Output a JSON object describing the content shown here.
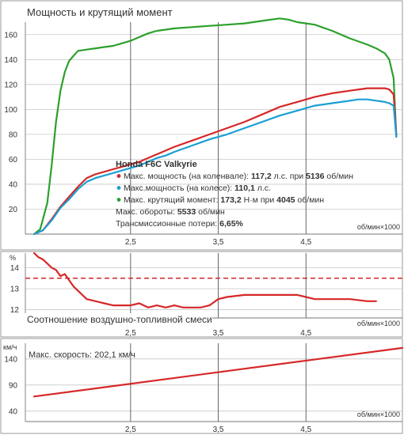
{
  "chart_data": [
    {
      "type": "line",
      "title": "Мощность и крутящий момент",
      "xlabel": "об/мин×1000",
      "xlim": [
        1.3,
        5.6
      ],
      "ylim": [
        0,
        170
      ],
      "x_ticks": [
        "2,5",
        "3,5",
        "4,5"
      ],
      "y_ticks": [
        "20",
        "40",
        "60",
        "80",
        "100",
        "120",
        "140",
        "160"
      ],
      "grid": true,
      "legend": {
        "title": "Honda F6C Valkyrie",
        "items": [
          {
            "color": "#d62728",
            "prefix": "Макс. мощность (на коленвале): ",
            "value": "117,2",
            "mid": " л.с. при ",
            "value2": "5136",
            "suffix": " об/мин"
          },
          {
            "color": "#1a9fd4",
            "prefix": "Макс.мощность (на колесе): ",
            "value": "110,1",
            "mid": " л.с.",
            "value2": "",
            "suffix": ""
          },
          {
            "color": "#2ca02c",
            "prefix": "Макс. крутящий момент: ",
            "value": "173,2",
            "mid": " Н·м при ",
            "value2": "4045",
            "suffix": " об/мин"
          }
        ],
        "extra": [
          {
            "prefix": "Макс. обороты: ",
            "value": "5533",
            "suffix": " об/мин"
          },
          {
            "prefix": "Трансмиссионные потери: ",
            "value": "6,65%",
            "suffix": ""
          }
        ]
      },
      "series": [
        {
          "key": "torque",
          "color": "#2ca02c",
          "x": [
            1.4,
            1.47,
            1.55,
            1.6,
            1.65,
            1.7,
            1.75,
            1.8,
            1.9,
            2.0,
            2.1,
            2.2,
            2.3,
            2.4,
            2.5,
            2.6,
            2.7,
            2.8,
            2.9,
            3.0,
            3.2,
            3.4,
            3.6,
            3.8,
            4.0,
            4.1,
            4.2,
            4.3,
            4.4,
            4.6,
            4.8,
            5.0,
            5.2,
            5.3,
            5.4,
            5.45,
            5.5,
            5.53
          ],
          "y": [
            0,
            4,
            25,
            55,
            90,
            115,
            130,
            139,
            147,
            148,
            149,
            150,
            151,
            153,
            155,
            158,
            161,
            163,
            164,
            165,
            166,
            167,
            168,
            169,
            171,
            172,
            173,
            172,
            170,
            168,
            163,
            157,
            152,
            149,
            145,
            140,
            125,
            78
          ]
        },
        {
          "key": "power_crank",
          "color": "#d62728",
          "x": [
            1.4,
            1.5,
            1.6,
            1.7,
            1.8,
            1.9,
            2.0,
            2.1,
            2.2,
            2.3,
            2.4,
            2.5,
            2.6,
            2.7,
            2.8,
            2.9,
            3.0,
            3.2,
            3.4,
            3.6,
            3.8,
            4.0,
            4.2,
            4.4,
            4.6,
            4.8,
            5.0,
            5.1,
            5.2,
            5.3,
            5.4,
            5.45,
            5.5,
            5.53
          ],
          "y": [
            0,
            3,
            12,
            22,
            30,
            38,
            45,
            48,
            50,
            52,
            54,
            56,
            58,
            61,
            64,
            67,
            70,
            75,
            80,
            85,
            90,
            96,
            102,
            106,
            110,
            113,
            115,
            116,
            117,
            117,
            117,
            116,
            112,
            80
          ]
        },
        {
          "key": "power_wheel",
          "color": "#1a9fd4",
          "x": [
            1.4,
            1.5,
            1.6,
            1.7,
            1.8,
            1.9,
            2.0,
            2.1,
            2.2,
            2.3,
            2.4,
            2.5,
            2.6,
            2.7,
            2.8,
            2.9,
            3.0,
            3.2,
            3.4,
            3.6,
            3.8,
            4.0,
            4.2,
            4.4,
            4.6,
            4.8,
            5.0,
            5.1,
            5.2,
            5.3,
            5.4,
            5.45,
            5.5,
            5.53
          ],
          "y": [
            0,
            3,
            11,
            21,
            28,
            36,
            42,
            45,
            47,
            49,
            51,
            53,
            55,
            58,
            61,
            63,
            66,
            71,
            76,
            80,
            85,
            90,
            95,
            99,
            103,
            105,
            107,
            108,
            108,
            107,
            106,
            105,
            103,
            78
          ]
        }
      ]
    },
    {
      "type": "line",
      "title": "Соотношение воздушно-топливной смеси",
      "ylabel": "%",
      "xlabel": "об/мин×1000",
      "xlim": [
        1.3,
        5.6
      ],
      "ylim": [
        11.6,
        14.7
      ],
      "x_ticks": [
        "2,5",
        "3,5",
        "4,5"
      ],
      "y_ticks": [
        "12",
        "13",
        "14"
      ],
      "grid": true,
      "reference_line": {
        "y": 13.5,
        "color": "#d62728",
        "style": "dashed"
      },
      "series": [
        {
          "key": "afr",
          "color": "#d62728",
          "x": [
            1.4,
            1.45,
            1.5,
            1.55,
            1.6,
            1.65,
            1.7,
            1.75,
            1.8,
            1.85,
            1.9,
            1.95,
            2.0,
            2.1,
            2.2,
            2.3,
            2.4,
            2.5,
            2.6,
            2.7,
            2.8,
            2.9,
            3.0,
            3.1,
            3.2,
            3.3,
            3.4,
            3.5,
            3.6,
            3.8,
            4.0,
            4.2,
            4.4,
            4.5,
            4.6,
            4.8,
            5.0,
            5.2,
            5.3
          ],
          "y": [
            14.7,
            14.5,
            14.4,
            14.2,
            14.0,
            13.9,
            13.6,
            13.7,
            13.4,
            13.1,
            12.9,
            12.7,
            12.5,
            12.4,
            12.3,
            12.2,
            12.2,
            12.2,
            12.3,
            12.1,
            12.2,
            12.1,
            12.2,
            12.1,
            12.1,
            12.1,
            12.2,
            12.5,
            12.6,
            12.7,
            12.7,
            12.7,
            12.7,
            12.6,
            12.5,
            12.5,
            12.5,
            12.4,
            12.4
          ]
        }
      ]
    },
    {
      "type": "line",
      "title": "",
      "ylabel": "км/ч",
      "xlabel": "об/мин×1000",
      "xlim": [
        1.3,
        5.6
      ],
      "ylim": [
        20,
        170
      ],
      "x_ticks": [
        "2,5",
        "3,5",
        "4,5"
      ],
      "y_ticks": [
        "40",
        "90",
        "140"
      ],
      "grid": true,
      "annotation": {
        "prefix": "Макс. скорость: ",
        "value": "202,1",
        "suffix": " км/ч"
      },
      "series": [
        {
          "key": "speed",
          "color": "#d62728",
          "x": [
            1.4,
            5.6
          ],
          "y": [
            68,
            161
          ]
        }
      ]
    }
  ]
}
